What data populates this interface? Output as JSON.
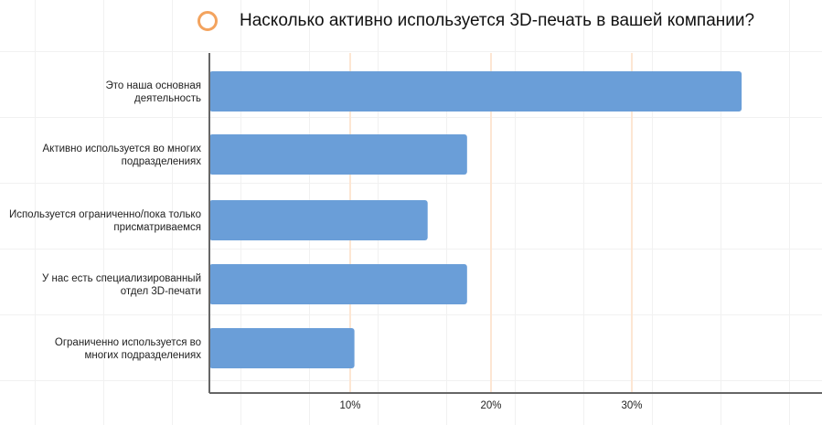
{
  "chart_data": {
    "type": "bar",
    "orientation": "horizontal",
    "title": "Насколько активно используется 3D-печать в вашей компании?",
    "categories": [
      [
        "Это наша основная",
        "деятельность"
      ],
      [
        "Активно используется во многих",
        "подразделениях"
      ],
      [
        "Используется ограниченно/пока только",
        "присматриваемся"
      ],
      [
        "У нас есть специализированный",
        "отдел 3D-печати"
      ],
      [
        "Ограниченно используется во",
        "многих подразделениях"
      ]
    ],
    "values": [
      37.8,
      18.3,
      15.5,
      18.3,
      10.3
    ],
    "xticks": [
      "10%",
      "20%",
      "30%"
    ],
    "xtick_values": [
      10,
      20,
      30
    ],
    "xlim": [
      0,
      44
    ],
    "colors": {
      "bar": "#6a9ed8",
      "gridline": "#fde6d3",
      "marker": "#f3a35e",
      "axis": "#666666"
    }
  }
}
